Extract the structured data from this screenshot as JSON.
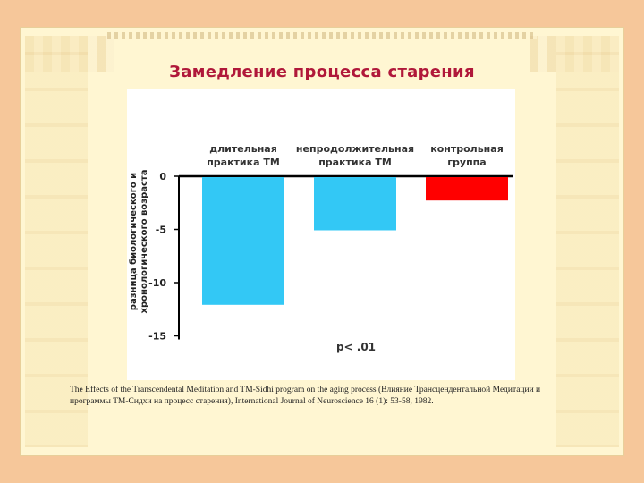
{
  "slide": {
    "title": "Замедление процесса старения",
    "citation": "The Effects of the Transcendental Meditation and TM-Sidhi program on the aging process (Влияние Трансцендентальной Медитации и программы ТМ-Сидхи на процесс старения), International Journal of Neuroscience 16 (1): 53-58, 1982."
  },
  "chart_data": {
    "type": "bar",
    "categories": [
      [
        "длительная",
        "практика ТМ"
      ],
      [
        "непродолжительная",
        "практика ТМ"
      ],
      [
        "контрольная",
        "группа"
      ]
    ],
    "values": [
      -12,
      -5,
      -2.2
    ],
    "colors": [
      "#33c8f5",
      "#33c8f5",
      "#ff0000"
    ],
    "ylabel": [
      "разница биологического и",
      "хронологического возраста"
    ],
    "ylim": [
      -15,
      0
    ],
    "yticks": [
      0,
      -5,
      -10,
      -15
    ],
    "annotation": "p< .01",
    "grid": false,
    "legend": "none"
  }
}
